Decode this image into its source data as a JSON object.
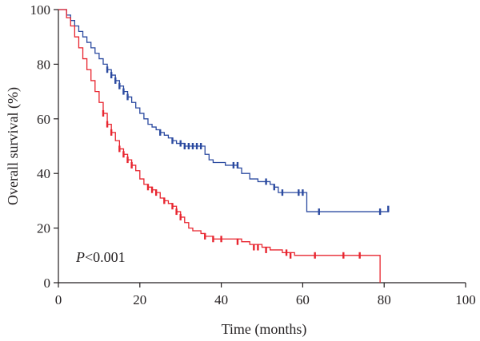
{
  "chart_data": {
    "type": "line",
    "subtype": "kaplan-meier step",
    "title": "",
    "xlabel": "Time (months)",
    "ylabel": "Overall survival (%)",
    "xlim": [
      0,
      100
    ],
    "ylim": [
      0,
      100
    ],
    "xticks": [
      "0",
      "20",
      "40",
      "60",
      "80",
      "100"
    ],
    "yticks": [
      "0",
      "20",
      "40",
      "60",
      "80",
      "100"
    ],
    "grid": false,
    "annotation": {
      "prefix": "P",
      "text": "<0.001"
    },
    "series": [
      {
        "color": "#2b4aa0",
        "x": [
          0,
          2,
          3,
          4,
          5,
          6,
          7,
          8,
          9,
          10,
          11,
          12,
          13,
          14,
          15,
          16,
          17,
          18,
          19,
          20,
          21,
          22,
          23,
          24,
          25,
          26,
          27,
          28,
          29,
          30,
          31,
          32,
          33,
          34,
          35,
          36,
          37,
          38,
          40,
          41,
          42,
          43,
          44,
          45,
          46,
          47,
          48,
          49,
          50,
          52,
          53,
          54,
          56,
          58,
          60,
          61,
          62,
          65,
          70,
          75,
          80,
          81
        ],
        "y": [
          100,
          98,
          96,
          94,
          92,
          90,
          88,
          86,
          84,
          82,
          80,
          78,
          76,
          74,
          72,
          70,
          68,
          66,
          64,
          62,
          60,
          58,
          57,
          56,
          55,
          54,
          53,
          52,
          51,
          51,
          50,
          50,
          50,
          50,
          50,
          47,
          45,
          44,
          44,
          43,
          43,
          43,
          42,
          40,
          40,
          38,
          38,
          37,
          37,
          36,
          35,
          33,
          33,
          33,
          33,
          26,
          26,
          26,
          26,
          26,
          26,
          27
        ],
        "censor_x": [
          12,
          13,
          14,
          15,
          16,
          17,
          25,
          28,
          30,
          31,
          32,
          33,
          34,
          35,
          43,
          44,
          51,
          53,
          55,
          59,
          60,
          64,
          79,
          81
        ],
        "censor_y": [
          78,
          76,
          74,
          72,
          70,
          68,
          55,
          52,
          51,
          50,
          50,
          50,
          50,
          50,
          43,
          43,
          37,
          35,
          33,
          33,
          33,
          26,
          26,
          27
        ]
      },
      {
        "color": "#e8252f",
        "x": [
          0,
          2,
          3,
          4,
          5,
          6,
          7,
          8,
          9,
          10,
          11,
          12,
          13,
          14,
          15,
          16,
          17,
          18,
          19,
          20,
          21,
          22,
          23,
          24,
          25,
          26,
          27,
          28,
          29,
          30,
          31,
          32,
          33,
          34,
          35,
          36,
          38,
          40,
          42,
          45,
          47,
          50,
          52,
          55,
          58,
          60,
          65,
          70,
          75,
          79
        ],
        "y": [
          100,
          97,
          94,
          90,
          86,
          82,
          78,
          74,
          70,
          66,
          62,
          58,
          55,
          52,
          49,
          47,
          45,
          43,
          41,
          38,
          36,
          35,
          34,
          33,
          31,
          30,
          29,
          28,
          26,
          24,
          22,
          20,
          19,
          19,
          18,
          17,
          16,
          16,
          16,
          15,
          14,
          13,
          12,
          11,
          10,
          10,
          10,
          10,
          10,
          0
        ],
        "censor_x": [
          11,
          12,
          13,
          15,
          16,
          17,
          18,
          22,
          23,
          24,
          26,
          28,
          29,
          30,
          36,
          38,
          40,
          44,
          48,
          49,
          51,
          56,
          57,
          63,
          70,
          74
        ],
        "censor_y": [
          62,
          58,
          55,
          49,
          47,
          45,
          43,
          35,
          34,
          33,
          30,
          28,
          26,
          24,
          17,
          16,
          16,
          15,
          13,
          13,
          12,
          11,
          10,
          10,
          10,
          10
        ]
      }
    ]
  }
}
